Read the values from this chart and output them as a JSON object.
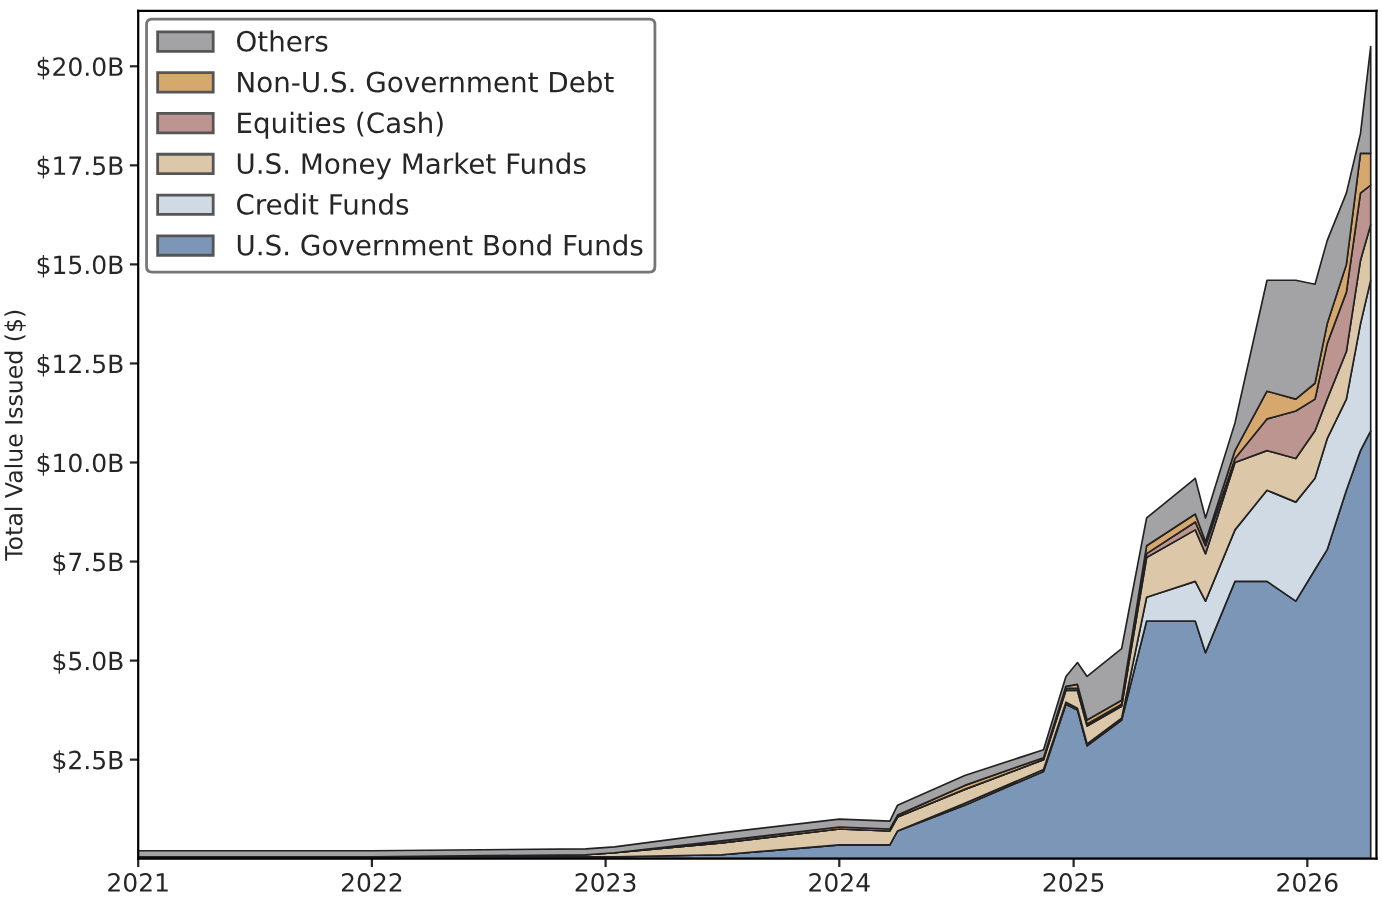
{
  "chart_data": {
    "type": "area",
    "stacked": true,
    "ylabel": "Total Value Issued ($)",
    "legend": "top left",
    "grid": false,
    "x": [
      "2021-01-01",
      "2022-01-01",
      "2022-12-01",
      "2023-01-15",
      "2023-07-01",
      "2024-01-01",
      "2024-03-20",
      "2024-04-01",
      "2024-07-15",
      "2024-11-15",
      "2024-12-20",
      "2025-01-07",
      "2025-01-22",
      "2025-03-17",
      "2025-04-25",
      "2025-07-10",
      "2025-07-26",
      "2025-09-10",
      "2025-10-30",
      "2025-12-14",
      "2026-01-13",
      "2026-02-01",
      "2026-03-03",
      "2026-03-25",
      "2026-04-10"
    ],
    "series": [
      {
        "name": "U.S. Government Bond Funds",
        "color": "#7b96b6",
        "values": [
          0.05,
          0.05,
          0.05,
          0.05,
          0.1,
          0.35,
          0.35,
          0.7,
          1.35,
          2.2,
          3.9,
          3.75,
          2.85,
          3.5,
          6.0,
          6.0,
          5.2,
          7.0,
          7.0,
          6.5,
          7.3,
          7.8,
          9.3,
          10.3,
          10.8
        ]
      },
      {
        "name": "Credit Funds",
        "color": "#cfdae5",
        "values": [
          0,
          0,
          0,
          0,
          0,
          0,
          0,
          0,
          0.05,
          0.05,
          0.05,
          0.05,
          0.05,
          0.05,
          0.6,
          1.0,
          1.3,
          1.3,
          2.3,
          2.5,
          2.3,
          2.8,
          2.3,
          3.2,
          3.8
        ]
      },
      {
        "name": "U.S. Money Market Funds",
        "color": "#dcc8a8",
        "values": [
          0,
          0,
          0.05,
          0.1,
          0.3,
          0.4,
          0.35,
          0.35,
          0.35,
          0.25,
          0.3,
          0.45,
          0.45,
          0.3,
          1.0,
          1.3,
          1.2,
          1.7,
          1.0,
          1.1,
          1.2,
          1.0,
          1.2,
          1.6,
          1.4
        ]
      },
      {
        "name": "Equities (Cash)",
        "color": "#bc9490",
        "values": [
          0,
          0,
          0,
          0,
          0,
          0,
          0,
          0,
          0,
          0,
          0.05,
          0.05,
          0.05,
          0.05,
          0.1,
          0.2,
          0.2,
          0.1,
          0.8,
          1.2,
          0.8,
          1.4,
          1.5,
          1.7,
          1.0
        ]
      },
      {
        "name": "Non-U.S. Government Debt",
        "color": "#d7a86e",
        "values": [
          0,
          0,
          0,
          0,
          0.05,
          0.05,
          0.05,
          0.05,
          0.1,
          0.05,
          0.05,
          0.1,
          0.1,
          0.1,
          0.2,
          0.2,
          0.1,
          0.2,
          0.7,
          0.3,
          0.4,
          0.5,
          0.7,
          1.0,
          0.8
        ]
      },
      {
        "name": "Others",
        "color": "#a3a3a5",
        "values": [
          0.15,
          0.15,
          0.15,
          0.15,
          0.2,
          0.2,
          0.2,
          0.25,
          0.25,
          0.2,
          0.25,
          0.55,
          1.1,
          1.3,
          0.7,
          0.9,
          0.6,
          0.7,
          2.8,
          3.0,
          2.5,
          2.1,
          1.8,
          0.5,
          2.7
        ]
      }
    ],
    "xlim": [
      "2021-01-01",
      "2026-04-19"
    ],
    "xticks": [
      {
        "value": "2021-01-01",
        "label": "2021"
      },
      {
        "value": "2022-01-01",
        "label": "2022"
      },
      {
        "value": "2023-01-01",
        "label": "2023"
      },
      {
        "value": "2024-01-01",
        "label": "2024"
      },
      {
        "value": "2025-01-01",
        "label": "2025"
      },
      {
        "value": "2026-01-01",
        "label": "2026"
      }
    ],
    "ylim": [
      0,
      21.4
    ],
    "yticks": [
      {
        "value": 2.5,
        "label": "$2.5B"
      },
      {
        "value": 5.0,
        "label": "$5.0B"
      },
      {
        "value": 7.5,
        "label": "$7.5B"
      },
      {
        "value": 10.0,
        "label": "$10.0B"
      },
      {
        "value": 12.5,
        "label": "$12.5B"
      },
      {
        "value": 15.0,
        "label": "$15.0B"
      },
      {
        "value": 17.5,
        "label": "$17.5B"
      },
      {
        "value": 20.0,
        "label": "$20.0B"
      }
    ]
  }
}
